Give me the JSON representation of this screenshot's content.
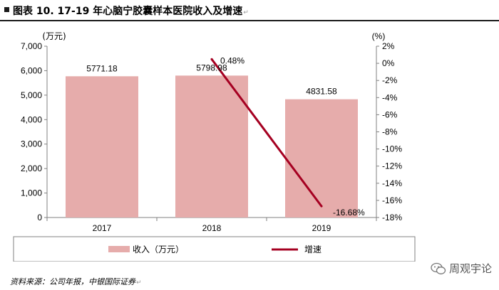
{
  "title": "图表 10. 17-19 年心脑宁胶囊样本医院收入及增速",
  "return_mark": "↵",
  "source": "资料来源：公司年报，中银国际证券",
  "watermark": "周观宇论",
  "colors": {
    "bar": "#e6acab",
    "line": "#a50021",
    "axis": "#808080",
    "text": "#000000"
  },
  "chart_data": {
    "type": "bar",
    "categories": [
      "2017",
      "2018",
      "2019"
    ],
    "series": [
      {
        "name": "收入（万元）",
        "type": "bar",
        "axis": "left",
        "values": [
          5771.18,
          5798.98,
          4831.58
        ],
        "labels": [
          "5771.18",
          "5798.98",
          "4831.58"
        ]
      },
      {
        "name": "增速",
        "type": "line",
        "axis": "right",
        "x": [
          "2018",
          "2019"
        ],
        "values": [
          0.48,
          -16.68
        ],
        "labels": [
          "0.48%",
          "-16.68%"
        ]
      }
    ],
    "y_left": {
      "label": "(万元)",
      "range": [
        0,
        7000
      ],
      "ticks": [
        0,
        1000,
        2000,
        3000,
        4000,
        5000,
        6000,
        7000
      ],
      "tick_labels": [
        "0",
        "1,000",
        "2,000",
        "3,000",
        "4,000",
        "5,000",
        "6,000",
        "7,000"
      ]
    },
    "y_right": {
      "label": "(%)",
      "range": [
        -18,
        2
      ],
      "ticks": [
        2,
        0,
        -2,
        -4,
        -6,
        -8,
        -10,
        -12,
        -14,
        -16,
        -18
      ],
      "tick_labels": [
        "2%",
        "0%",
        "-2%",
        "-4%",
        "-6%",
        "-8%",
        "-10%",
        "-12%",
        "-14%",
        "-16%",
        "-18%"
      ]
    },
    "grid": false,
    "legend_position": "bottom"
  }
}
